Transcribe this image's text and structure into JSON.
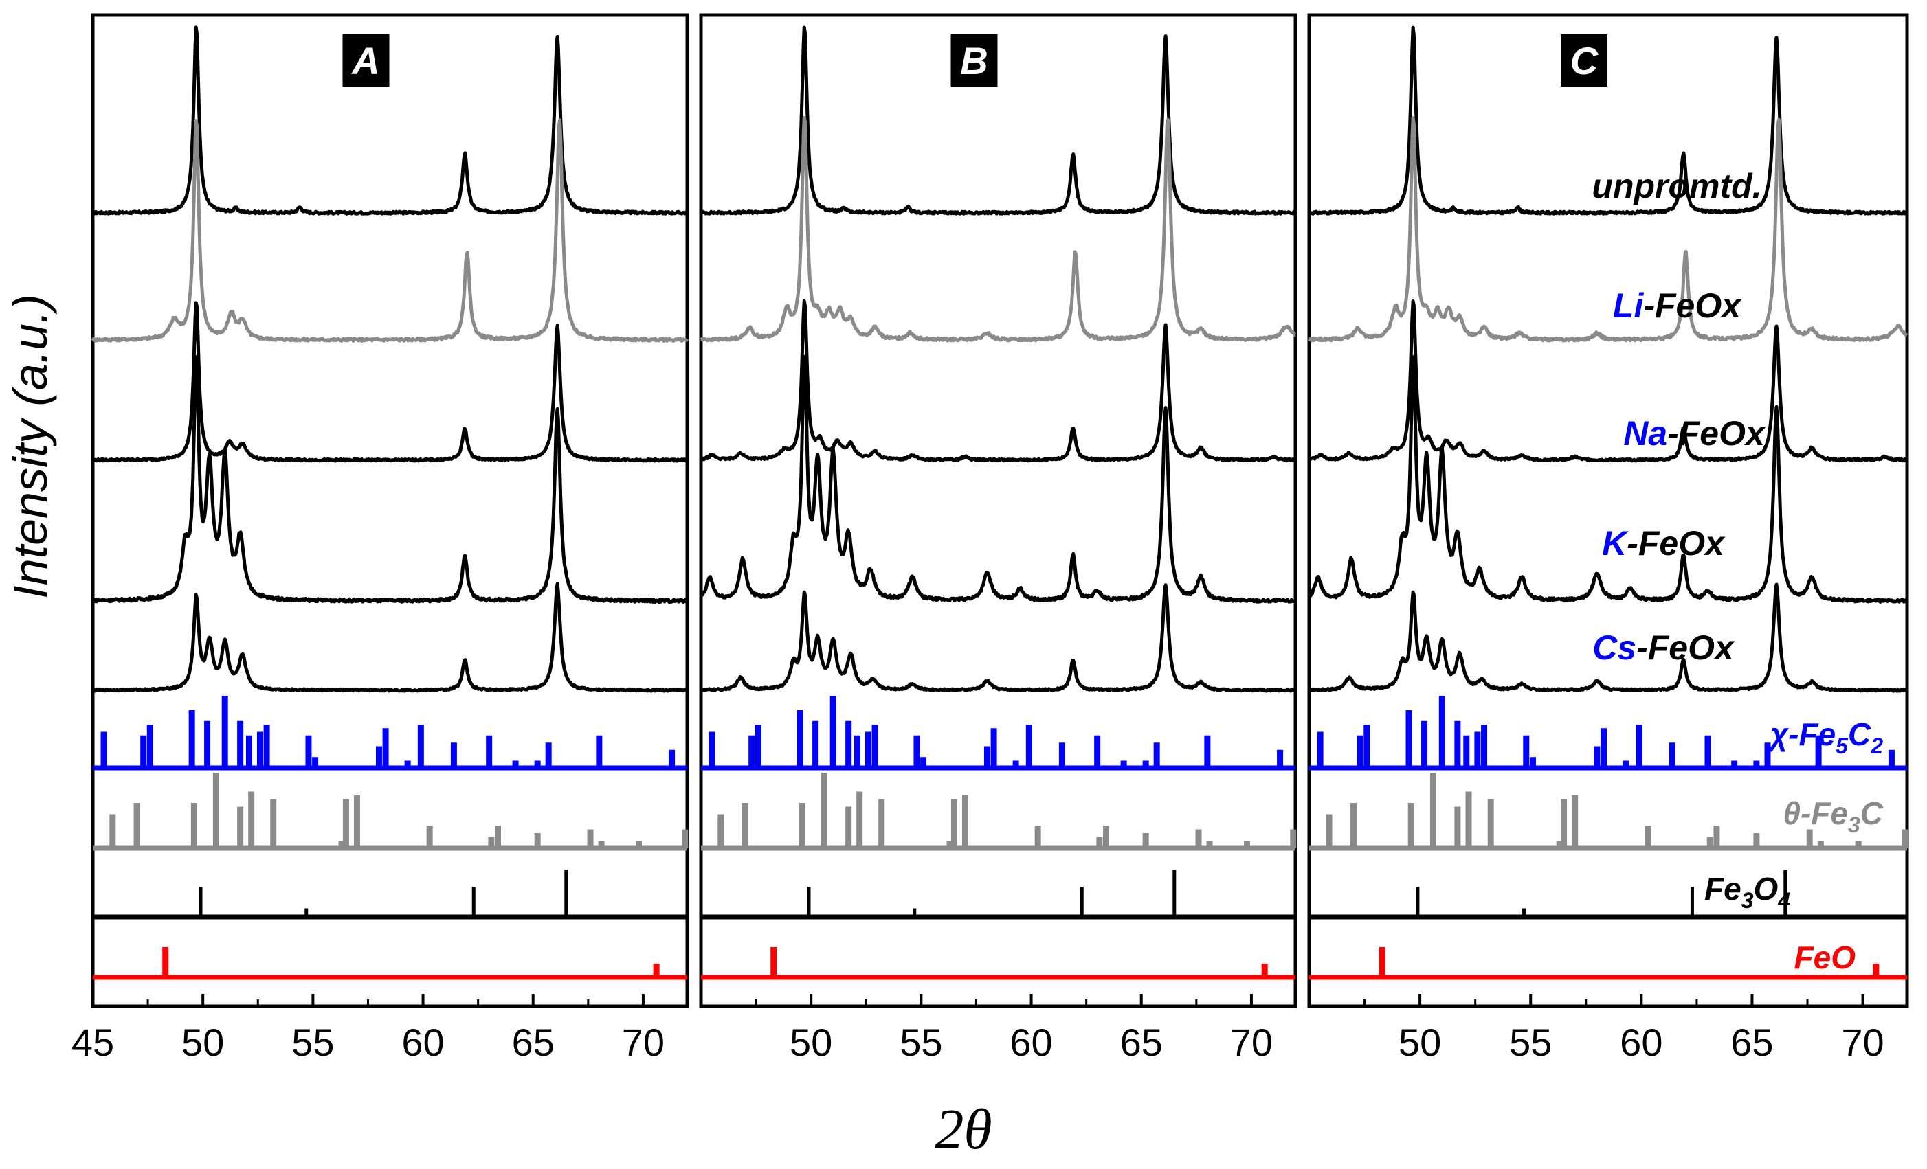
{
  "chart_data": {
    "type": "line",
    "title": "",
    "xlabel": "2θ",
    "ylabel": "Intensity (a.u.)",
    "xlim": [
      45,
      72
    ],
    "panels": [
      {
        "label": "A",
        "xticks": [
          45,
          50,
          55,
          60,
          65,
          70
        ]
      },
      {
        "label": "B",
        "xticks": [
          50,
          55,
          60,
          65,
          70
        ]
      },
      {
        "label": "C",
        "xticks": [
          50,
          55,
          60,
          65,
          70
        ]
      }
    ],
    "colors": {
      "black": "#000000",
      "gray": "#8a8a8a",
      "blue": "#0000ff",
      "red": "#ff0000"
    },
    "series_labels": [
      {
        "key": "unpromoted",
        "parts": [
          {
            "text": "unpromtd.",
            "color": "#000000"
          }
        ]
      },
      {
        "key": "li",
        "parts": [
          {
            "text": "Li",
            "color": "#0000ff"
          },
          {
            "text": "-FeOx",
            "color": "#000000"
          }
        ]
      },
      {
        "key": "na",
        "parts": [
          {
            "text": "Na",
            "color": "#0000ff"
          },
          {
            "text": "-FeOx",
            "color": "#000000"
          }
        ]
      },
      {
        "key": "k",
        "parts": [
          {
            "text": "K",
            "color": "#0000ff"
          },
          {
            "text": "-FeOx",
            "color": "#000000"
          }
        ]
      },
      {
        "key": "cs",
        "parts": [
          {
            "text": "Cs",
            "color": "#0000ff"
          },
          {
            "text": "-FeOx",
            "color": "#000000"
          }
        ]
      }
    ],
    "references": [
      {
        "name": "χ-Fe5C2",
        "prefix": "χ-Fe",
        "sub1": "5",
        "mid": "C",
        "sub2": "2",
        "color": "#0000ff",
        "peaks": [
          [
            45.5,
            0.5
          ],
          [
            47.3,
            0.45
          ],
          [
            47.6,
            0.6
          ],
          [
            49.5,
            0.8
          ],
          [
            50.2,
            0.65
          ],
          [
            51.0,
            1.0
          ],
          [
            51.7,
            0.65
          ],
          [
            52.1,
            0.45
          ],
          [
            52.6,
            0.5
          ],
          [
            52.9,
            0.6
          ],
          [
            54.8,
            0.45
          ],
          [
            55.1,
            0.15
          ],
          [
            58.0,
            0.3
          ],
          [
            58.3,
            0.55
          ],
          [
            59.3,
            0.1
          ],
          [
            59.9,
            0.6
          ],
          [
            61.4,
            0.35
          ],
          [
            63.0,
            0.45
          ],
          [
            64.2,
            0.1
          ],
          [
            65.2,
            0.1
          ],
          [
            65.7,
            0.35
          ],
          [
            68.0,
            0.45
          ],
          [
            71.3,
            0.25
          ]
        ]
      },
      {
        "name": "θ-Fe3C",
        "prefix": "θ-Fe",
        "sub1": "3",
        "mid": "C",
        "sub2": "",
        "color": "#8a8a8a",
        "peaks": [
          [
            45.9,
            0.45
          ],
          [
            47.0,
            0.6
          ],
          [
            49.6,
            0.6
          ],
          [
            50.6,
            1.0
          ],
          [
            51.7,
            0.55
          ],
          [
            52.2,
            0.75
          ],
          [
            53.2,
            0.65
          ],
          [
            56.3,
            0.1
          ],
          [
            56.5,
            0.65
          ],
          [
            57.0,
            0.7
          ],
          [
            60.3,
            0.3
          ],
          [
            63.1,
            0.15
          ],
          [
            63.4,
            0.3
          ],
          [
            65.2,
            0.2
          ],
          [
            67.6,
            0.25
          ],
          [
            68.1,
            0.1
          ],
          [
            69.8,
            0.1
          ],
          [
            71.9,
            0.25
          ]
        ]
      },
      {
        "name": "Fe3O4",
        "prefix": "Fe",
        "sub1": "3",
        "mid": "O",
        "sub2": "4",
        "color": "#000000",
        "peaks": [
          [
            49.9,
            0.35
          ],
          [
            54.7,
            0.1
          ],
          [
            62.3,
            0.35
          ],
          [
            66.5,
            0.55
          ]
        ]
      },
      {
        "name": "FeO",
        "prefix": "FeO",
        "sub1": "",
        "mid": "",
        "sub2": "",
        "color": "#ff0000",
        "peaks": [
          [
            48.3,
            0.55
          ],
          [
            70.6,
            0.25
          ]
        ]
      }
    ],
    "patterns": {
      "unpromoted": [
        {
          "pos": 49.7,
          "h": 1.0,
          "w": 0.14
        },
        {
          "pos": 61.9,
          "h": 0.32,
          "w": 0.14
        },
        {
          "pos": 66.1,
          "h": 0.95,
          "w": 0.16
        },
        {
          "pos": 51.5,
          "h": 0.02,
          "w": 0.12
        },
        {
          "pos": 54.4,
          "h": 0.03,
          "w": 0.12
        }
      ],
      "li": [
        {
          "pos": 49.7,
          "h": 1.0,
          "w": 0.14
        },
        {
          "pos": 48.9,
          "h": 0.12,
          "w": 0.2
        },
        {
          "pos": 50.3,
          "h": 0.08,
          "w": 0.2
        },
        {
          "pos": 50.8,
          "h": 0.1,
          "w": 0.2
        },
        {
          "pos": 51.3,
          "h": 0.11,
          "w": 0.2
        },
        {
          "pos": 51.8,
          "h": 0.08,
          "w": 0.2
        },
        {
          "pos": 52.9,
          "h": 0.05,
          "w": 0.2
        },
        {
          "pos": 47.2,
          "h": 0.05,
          "w": 0.2
        },
        {
          "pos": 54.5,
          "h": 0.03,
          "w": 0.2
        },
        {
          "pos": 58.0,
          "h": 0.03,
          "w": 0.2
        },
        {
          "pos": 62.0,
          "h": 0.4,
          "w": 0.14
        },
        {
          "pos": 66.2,
          "h": 1.0,
          "w": 0.16
        },
        {
          "pos": 67.7,
          "h": 0.04,
          "w": 0.2
        },
        {
          "pos": 71.6,
          "h": 0.06,
          "w": 0.3
        }
      ],
      "na": [
        {
          "pos": 49.7,
          "h": 1.0,
          "w": 0.14
        },
        {
          "pos": 48.8,
          "h": 0.05,
          "w": 0.25
        },
        {
          "pos": 50.4,
          "h": 0.1,
          "w": 0.2
        },
        {
          "pos": 51.2,
          "h": 0.1,
          "w": 0.22
        },
        {
          "pos": 51.8,
          "h": 0.09,
          "w": 0.22
        },
        {
          "pos": 52.9,
          "h": 0.05,
          "w": 0.2
        },
        {
          "pos": 45.5,
          "h": 0.03,
          "w": 0.2
        },
        {
          "pos": 46.8,
          "h": 0.04,
          "w": 0.2
        },
        {
          "pos": 54.6,
          "h": 0.03,
          "w": 0.2
        },
        {
          "pos": 57.0,
          "h": 0.02,
          "w": 0.2
        },
        {
          "pos": 61.9,
          "h": 0.2,
          "w": 0.14
        },
        {
          "pos": 66.1,
          "h": 0.85,
          "w": 0.16
        },
        {
          "pos": 67.7,
          "h": 0.07,
          "w": 0.2
        },
        {
          "pos": 71.0,
          "h": 0.02,
          "w": 0.2
        }
      ],
      "k": [
        {
          "pos": 49.7,
          "h": 1.0,
          "w": 0.14
        },
        {
          "pos": 50.3,
          "h": 0.55,
          "w": 0.18
        },
        {
          "pos": 51.0,
          "h": 0.6,
          "w": 0.18
        },
        {
          "pos": 49.2,
          "h": 0.2,
          "w": 0.18
        },
        {
          "pos": 51.7,
          "h": 0.25,
          "w": 0.2
        },
        {
          "pos": 52.7,
          "h": 0.12,
          "w": 0.2
        },
        {
          "pos": 45.4,
          "h": 0.1,
          "w": 0.18
        },
        {
          "pos": 46.9,
          "h": 0.18,
          "w": 0.18
        },
        {
          "pos": 54.6,
          "h": 0.1,
          "w": 0.2
        },
        {
          "pos": 58.0,
          "h": 0.12,
          "w": 0.22
        },
        {
          "pos": 59.5,
          "h": 0.05,
          "w": 0.2
        },
        {
          "pos": 61.9,
          "h": 0.2,
          "w": 0.14
        },
        {
          "pos": 63.0,
          "h": 0.04,
          "w": 0.2
        },
        {
          "pos": 66.1,
          "h": 0.85,
          "w": 0.16
        },
        {
          "pos": 67.7,
          "h": 0.1,
          "w": 0.2
        }
      ],
      "cs": [
        {
          "pos": 49.7,
          "h": 0.6,
          "w": 0.14
        },
        {
          "pos": 50.3,
          "h": 0.3,
          "w": 0.18
        },
        {
          "pos": 51.0,
          "h": 0.3,
          "w": 0.18
        },
        {
          "pos": 51.8,
          "h": 0.22,
          "w": 0.2
        },
        {
          "pos": 49.2,
          "h": 0.15,
          "w": 0.18
        },
        {
          "pos": 52.8,
          "h": 0.06,
          "w": 0.2
        },
        {
          "pos": 46.8,
          "h": 0.08,
          "w": 0.2
        },
        {
          "pos": 54.6,
          "h": 0.04,
          "w": 0.2
        },
        {
          "pos": 58.0,
          "h": 0.06,
          "w": 0.22
        },
        {
          "pos": 61.9,
          "h": 0.2,
          "w": 0.14
        },
        {
          "pos": 66.1,
          "h": 0.7,
          "w": 0.16
        },
        {
          "pos": 67.7,
          "h": 0.05,
          "w": 0.2
        }
      ]
    },
    "panel_visibility": {
      "A": {
        "li_broad_features": false,
        "promoted_carbide_features": false
      },
      "B": {
        "li_broad_features": true,
        "promoted_carbide_features": true
      },
      "C": {
        "li_broad_features": true,
        "promoted_carbide_features": true
      }
    }
  }
}
